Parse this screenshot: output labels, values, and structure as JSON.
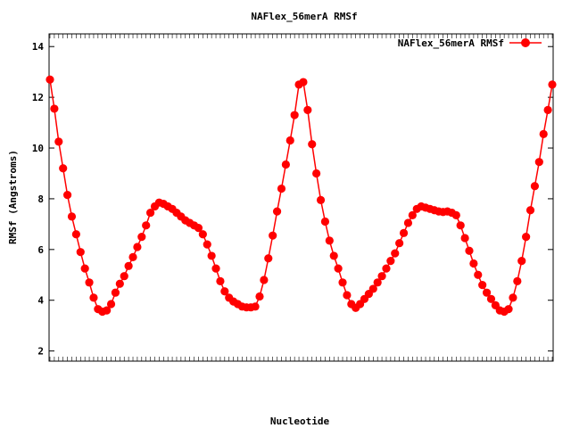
{
  "chart_data": {
    "type": "line",
    "title": "NAFlex_56merA RMSf",
    "xlabel": "Nucleotide",
    "ylabel": "RMSf (Angstroms)",
    "ylim": [
      1.6,
      14.5
    ],
    "yticks": [
      2,
      4,
      6,
      8,
      10,
      12,
      14
    ],
    "grid": false,
    "legend_position": "top-right",
    "series": [
      {
        "name": "NAFlex_56merA RMSf",
        "color": "#ff0000",
        "marker": "circle",
        "values": [
          12.7,
          11.55,
          10.25,
          9.2,
          8.15,
          7.3,
          6.6,
          5.9,
          5.25,
          4.7,
          4.1,
          3.65,
          3.55,
          3.6,
          3.85,
          4.3,
          4.65,
          4.95,
          5.35,
          5.7,
          6.1,
          6.5,
          6.95,
          7.45,
          7.7,
          7.85,
          7.8,
          7.7,
          7.6,
          7.45,
          7.3,
          7.15,
          7.05,
          6.95,
          6.85,
          6.6,
          6.2,
          5.75,
          5.25,
          4.75,
          4.35,
          4.1,
          3.95,
          3.85,
          3.75,
          3.72,
          3.72,
          3.75,
          4.15,
          4.8,
          5.65,
          6.55,
          7.5,
          8.4,
          9.35,
          10.3,
          11.3,
          12.5,
          12.6,
          11.5,
          10.15,
          9.0,
          7.95,
          7.1,
          6.35,
          5.75,
          5.25,
          4.7,
          4.2,
          3.85,
          3.7,
          3.85,
          4.05,
          4.25,
          4.45,
          4.7,
          4.95,
          5.25,
          5.55,
          5.85,
          6.25,
          6.65,
          7.05,
          7.35,
          7.6,
          7.7,
          7.65,
          7.6,
          7.55,
          7.5,
          7.48,
          7.5,
          7.45,
          7.35,
          6.95,
          6.45,
          5.95,
          5.45,
          5.0,
          4.6,
          4.3,
          4.05,
          3.8,
          3.6,
          3.55,
          3.65,
          4.1,
          4.75,
          5.55,
          6.5,
          7.55,
          8.5,
          9.45,
          10.55,
          11.5,
          12.5
        ]
      }
    ]
  }
}
